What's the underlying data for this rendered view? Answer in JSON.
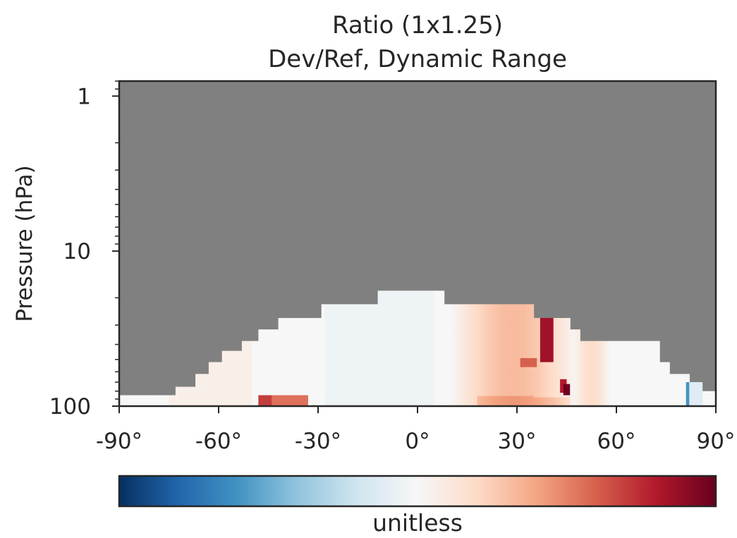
{
  "chart_data": {
    "type": "heatmap",
    "title": "Ratio (1x1.25)",
    "subtitle": "Dev/Ref, Dynamic Range",
    "xlabel": "",
    "ylabel": "Pressure (hPa)",
    "y_scale": "log",
    "y_inverted": true,
    "xlim": [
      -90,
      90
    ],
    "ylim": [
      100,
      0.8
    ],
    "x_ticks": [
      -90,
      -60,
      -30,
      0,
      30,
      60,
      90
    ],
    "x_tick_labels": [
      "-90°",
      "-60°",
      "-30°",
      "0°",
      "30°",
      "60°",
      "90°"
    ],
    "y_ticks": [
      1,
      10,
      100
    ],
    "y_tick_labels": [
      "1",
      "10",
      "100"
    ],
    "colormap": "RdBu_r",
    "missing_color": "#808080",
    "colorbar_label": "unitless",
    "colorbar_orientation": "horizontal",
    "data_top_envelope": [
      {
        "lat_from": -90,
        "lat_to": -73,
        "top_hPa": 85
      },
      {
        "lat_from": -73,
        "lat_to": -67,
        "top_hPa": 75
      },
      {
        "lat_from": -67,
        "lat_to": -63,
        "top_hPa": 62
      },
      {
        "lat_from": -63,
        "lat_to": -59,
        "top_hPa": 52
      },
      {
        "lat_from": -59,
        "lat_to": -53,
        "top_hPa": 44
      },
      {
        "lat_from": -53,
        "lat_to": -48,
        "top_hPa": 38
      },
      {
        "lat_from": -48,
        "lat_to": -42,
        "top_hPa": 32
      },
      {
        "lat_from": -42,
        "lat_to": -29,
        "top_hPa": 27
      },
      {
        "lat_from": -29,
        "lat_to": -12,
        "top_hPa": 22
      },
      {
        "lat_from": -12,
        "lat_to": 8,
        "top_hPa": 18
      },
      {
        "lat_from": 8,
        "lat_to": 35,
        "top_hPa": 22
      },
      {
        "lat_from": 35,
        "lat_to": 46,
        "top_hPa": 27
      },
      {
        "lat_from": 46,
        "lat_to": 49,
        "top_hPa": 32
      },
      {
        "lat_from": 49,
        "lat_to": 73,
        "top_hPa": 38
      },
      {
        "lat_from": 73,
        "lat_to": 76,
        "top_hPa": 52
      },
      {
        "lat_from": 76,
        "lat_to": 82,
        "top_hPa": 62
      },
      {
        "lat_from": 82,
        "lat_to": 90,
        "top_hPa": 80
      }
    ],
    "highlight_cells": [
      {
        "lat_from": 37,
        "lat_to": 41,
        "p_from": 27,
        "p_to": 52,
        "value": 0.85
      },
      {
        "lat_from": 31,
        "lat_to": 36,
        "p_from": 49,
        "p_to": 56,
        "value": 0.6
      },
      {
        "lat_from": 43,
        "lat_to": 45,
        "p_from": 67,
        "p_to": 82,
        "value": 0.8
      },
      {
        "lat_from": 44,
        "lat_to": 46,
        "p_from": 72,
        "p_to": 85,
        "value": 0.98
      },
      {
        "lat_from": -48,
        "lat_to": -33,
        "p_from": 85,
        "p_to": 100,
        "value": 0.55
      },
      {
        "lat_from": -48,
        "lat_to": -44,
        "p_from": 85,
        "p_to": 100,
        "value": 0.7
      },
      {
        "lat_from": 81,
        "lat_to": 82,
        "p_from": 70,
        "p_to": 100,
        "value": -0.6
      },
      {
        "lat_from": 82,
        "lat_to": 86,
        "p_from": 70,
        "p_to": 100,
        "value": -0.12
      }
    ]
  }
}
